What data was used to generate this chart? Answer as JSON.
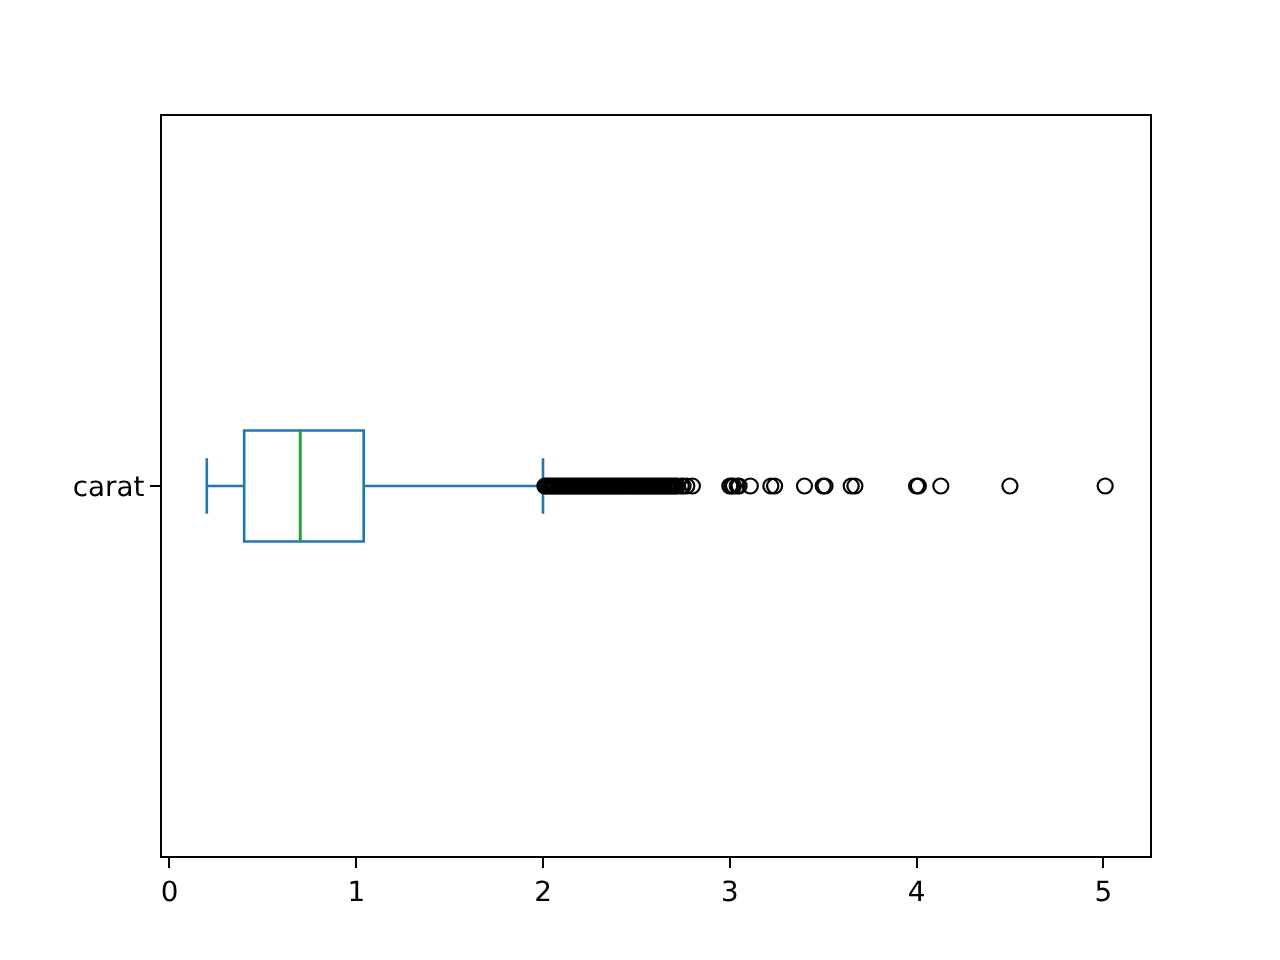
{
  "chart_data": {
    "type": "box",
    "orientation": "horizontal",
    "categories": [
      "carat"
    ],
    "series": [
      {
        "color": "#1f77b4",
        "boxes": [
          {
            "low": 0.2,
            "q1": 0.4,
            "median": 0.7,
            "q3": 1.04,
            "high": 2.0,
            "outliers": [
              2.01,
              2.02,
              2.03,
              2.04,
              2.05,
              2.06,
              2.07,
              2.08,
              2.09,
              2.1,
              2.11,
              2.12,
              2.13,
              2.14,
              2.15,
              2.16,
              2.17,
              2.18,
              2.19,
              2.2,
              2.21,
              2.22,
              2.23,
              2.24,
              2.25,
              2.26,
              2.27,
              2.28,
              2.29,
              2.3,
              2.31,
              2.32,
              2.33,
              2.34,
              2.35,
              2.36,
              2.37,
              2.38,
              2.39,
              2.4,
              2.41,
              2.42,
              2.43,
              2.44,
              2.45,
              2.46,
              2.47,
              2.48,
              2.49,
              2.5,
              2.51,
              2.52,
              2.53,
              2.54,
              2.55,
              2.56,
              2.57,
              2.58,
              2.59,
              2.6,
              2.61,
              2.62,
              2.63,
              2.64,
              2.65,
              2.66,
              2.67,
              2.68,
              2.69,
              2.7,
              2.71,
              2.72,
              2.74,
              2.75,
              2.77,
              2.8,
              3.0,
              3.01,
              3.02,
              3.04,
              3.05,
              3.11,
              3.22,
              3.24,
              3.4,
              3.5,
              3.51,
              3.65,
              3.67,
              4.0,
              4.01,
              4.13,
              4.5,
              5.01
            ]
          }
        ]
      }
    ],
    "xlim": [
      -0.04,
      5.25
    ],
    "xticks": [
      0,
      1,
      2,
      3,
      4,
      5
    ],
    "marker": "circle"
  }
}
